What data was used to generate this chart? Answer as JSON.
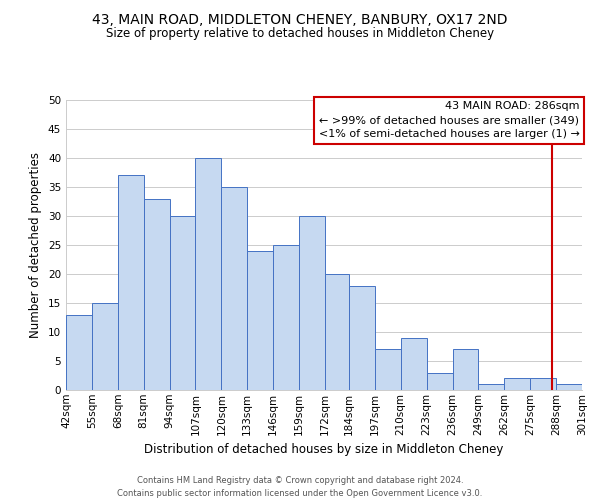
{
  "title": "43, MAIN ROAD, MIDDLETON CHENEY, BANBURY, OX17 2ND",
  "subtitle": "Size of property relative to detached houses in Middleton Cheney",
  "xlabel": "Distribution of detached houses by size in Middleton Cheney",
  "ylabel": "Number of detached properties",
  "footer_lines": [
    "Contains HM Land Registry data © Crown copyright and database right 2024.",
    "Contains public sector information licensed under the Open Government Licence v3.0."
  ],
  "bin_edges": [
    42,
    55,
    68,
    81,
    94,
    107,
    120,
    133,
    146,
    159,
    172,
    184,
    197,
    210,
    223,
    236,
    249,
    262,
    275,
    288,
    301
  ],
  "bin_labels": [
    "42sqm",
    "55sqm",
    "68sqm",
    "81sqm",
    "94sqm",
    "107sqm",
    "120sqm",
    "133sqm",
    "146sqm",
    "159sqm",
    "172sqm",
    "184sqm",
    "197sqm",
    "210sqm",
    "223sqm",
    "236sqm",
    "249sqm",
    "262sqm",
    "275sqm",
    "288sqm",
    "301sqm"
  ],
  "bar_heights": [
    13,
    15,
    37,
    33,
    30,
    40,
    35,
    24,
    25,
    30,
    20,
    18,
    7,
    9,
    3,
    7,
    1,
    2,
    2,
    1
  ],
  "bar_color": "#c6d9f1",
  "bar_edge_color": "#4472c4",
  "ylim": [
    0,
    50
  ],
  "yticks": [
    0,
    5,
    10,
    15,
    20,
    25,
    30,
    35,
    40,
    45,
    50
  ],
  "reference_line_x": 286,
  "reference_line_color": "#cc0000",
  "annotation_box": {
    "title": "43 MAIN ROAD: 286sqm",
    "line1": "← >99% of detached houses are smaller (349)",
    "line2": "<1% of semi-detached houses are larger (1) →",
    "box_color": "#ffffff",
    "border_color": "#cc0000",
    "text_color": "#000000"
  },
  "grid_color": "#cccccc",
  "bg_color": "#ffffff",
  "title_fontsize": 10,
  "subtitle_fontsize": 8.5,
  "axis_label_fontsize": 8.5,
  "tick_fontsize": 7.5,
  "footer_fontsize": 6,
  "annot_fontsize": 8
}
